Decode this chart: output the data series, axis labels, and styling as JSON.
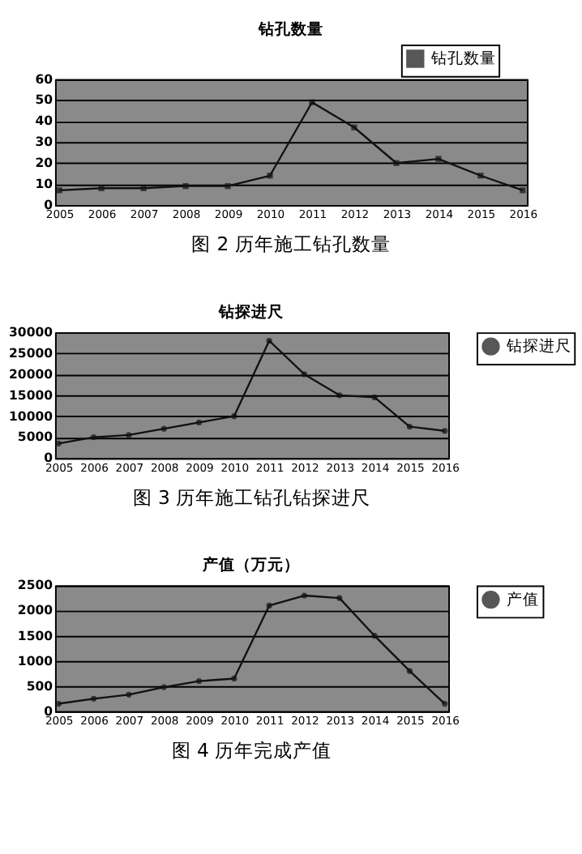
{
  "chart_data": [
    {
      "type": "line",
      "title": "钻孔数量",
      "categories": [
        "2005",
        "2006",
        "2007",
        "2008",
        "2009",
        "2010",
        "2011",
        "2012",
        "2013",
        "2014",
        "2015",
        "2016"
      ],
      "series": [
        {
          "name": "钻孔数量",
          "color": "#111111",
          "values": [
            7,
            8,
            8,
            9,
            9,
            14,
            49,
            37,
            20,
            22,
            14,
            7
          ]
        }
      ],
      "ylim": [
        0,
        60
      ],
      "yticks": [
        0,
        10,
        20,
        30,
        40,
        50,
        60
      ],
      "grid": "y",
      "legend": "top right",
      "marker": "square",
      "line_style": "solid",
      "annotations": [
        "图 2  历年施工钻孔数量"
      ]
    },
    {
      "type": "line",
      "title": "钻探进尺",
      "categories": [
        "2005",
        "2006",
        "2007",
        "2008",
        "2009",
        "2010",
        "2011",
        "2012",
        "2013",
        "2014",
        "2015",
        "2016"
      ],
      "series": [
        {
          "name": "钻探进尺",
          "color": "#111111",
          "values": [
            3500,
            5000,
            5500,
            7000,
            8500,
            10000,
            28000,
            20000,
            15000,
            14500,
            7500,
            6500
          ]
        }
      ],
      "ylim": [
        0,
        30000
      ],
      "yticks": [
        0,
        5000,
        10000,
        15000,
        20000,
        25000,
        30000
      ],
      "grid": "y",
      "legend": "right",
      "marker": "circle",
      "line_style": "solid",
      "annotations": [
        "图 3  历年施工钻孔钻探进尺"
      ]
    },
    {
      "type": "line",
      "title": "产值（万元）",
      "categories": [
        "2005",
        "2006",
        "2007",
        "2008",
        "2009",
        "2010",
        "2011",
        "2012",
        "2013",
        "2014",
        "2015",
        "2016"
      ],
      "series": [
        {
          "name": "产值",
          "color": "#111111",
          "values": [
            150,
            250,
            330,
            480,
            600,
            650,
            2100,
            2300,
            2250,
            1500,
            800,
            150
          ]
        }
      ],
      "ylim": [
        0,
        2500
      ],
      "yticks": [
        0,
        500,
        1000,
        1500,
        2000,
        2500
      ],
      "grid": "y",
      "legend": "right",
      "marker": "circle",
      "line_style": "solid",
      "annotations": [
        "图 4  历年完成产值"
      ]
    }
  ]
}
